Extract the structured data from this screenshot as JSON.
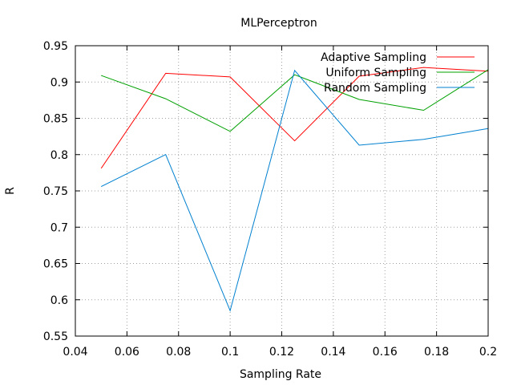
{
  "chart_data": {
    "type": "line",
    "title": "MLPerceptron",
    "xlabel": "Sampling Rate",
    "ylabel": "R",
    "xlim": [
      0.04,
      0.2
    ],
    "ylim": [
      0.55,
      0.95
    ],
    "xticks": [
      0.04,
      0.06,
      0.08,
      0.1,
      0.12,
      0.14,
      0.16,
      0.18,
      0.2
    ],
    "xtick_labels": [
      "0.04",
      "0.06",
      "0.08",
      "0.1",
      "0.12",
      "0.14",
      "0.16",
      "0.18",
      "0.2"
    ],
    "yticks": [
      0.55,
      0.6,
      0.65,
      0.7,
      0.75,
      0.8,
      0.85,
      0.9,
      0.95
    ],
    "ytick_labels": [
      "0.55",
      "0.6",
      "0.65",
      "0.7",
      "0.75",
      "0.8",
      "0.85",
      "0.9",
      "0.95"
    ],
    "grid": true,
    "legend_position": "top-right",
    "x": [
      0.05,
      0.075,
      0.1,
      0.125,
      0.15,
      0.175,
      0.2
    ],
    "series": [
      {
        "name": "Adaptive Sampling",
        "color": "#ff0000",
        "values": [
          0.781,
          0.912,
          0.907,
          0.819,
          0.908,
          0.92,
          0.915
        ]
      },
      {
        "name": "Uniform Sampling",
        "color": "#00a000",
        "values": [
          0.909,
          0.877,
          0.832,
          0.91,
          0.876,
          0.861,
          0.917
        ]
      },
      {
        "name": "Random Sampling",
        "color": "#0080d0",
        "values": [
          0.756,
          0.8,
          0.585,
          0.916,
          0.813,
          0.821,
          0.836
        ]
      }
    ]
  }
}
